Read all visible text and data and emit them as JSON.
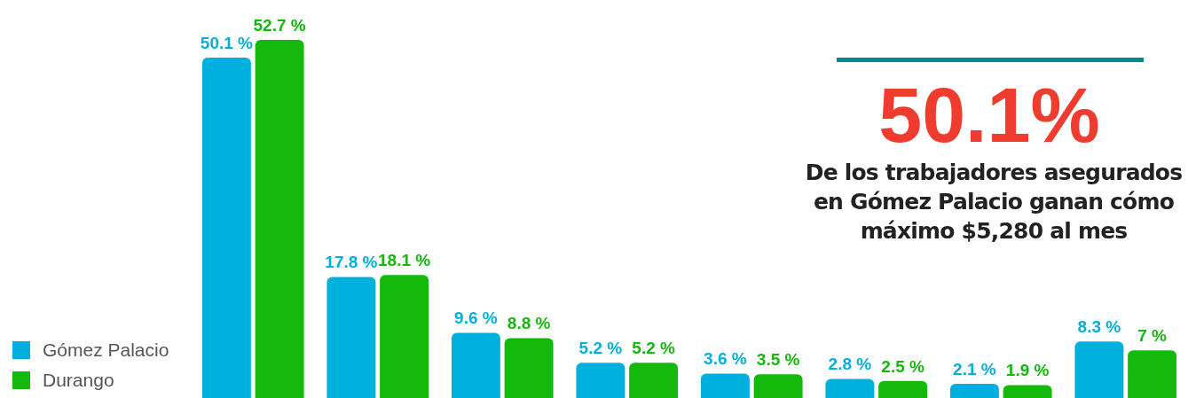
{
  "chart_data": {
    "type": "bar",
    "categories": [
      null,
      null,
      null,
      null,
      null,
      null,
      null,
      null
    ],
    "series": [
      {
        "name": "Gómez Palacio",
        "color": "#00b0dc",
        "values": [
          50.1,
          17.8,
          9.6,
          5.2,
          3.6,
          2.8,
          2.1,
          8.3
        ],
        "value_labels": [
          "50.1 %",
          "17.8 %",
          "9.6 %",
          "5.2 %",
          "3.6 %",
          "2.8 %",
          "2.1 %",
          "8.3 %"
        ]
      },
      {
        "name": "Durango",
        "color": "#13b90b",
        "values": [
          52.7,
          18.1,
          8.8,
          5.2,
          3.5,
          2.5,
          1.9,
          7
        ],
        "value_labels": [
          "52.7 %",
          "18.1 %",
          "8.8 %",
          "5.2 %",
          "3.5 %",
          "2.5 %",
          "1.9 %",
          "7 %"
        ]
      }
    ],
    "annotations": [
      "50.1%",
      "De los trabajadores asegurados en Gómez Palacio ganan cómo máximo $5,280 al mes"
    ],
    "legend": "bottom left"
  }
}
